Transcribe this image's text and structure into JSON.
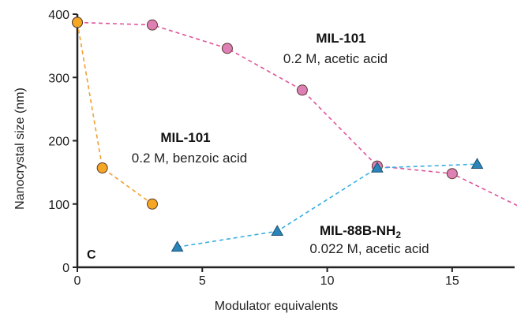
{
  "chart_data": {
    "type": "scatter",
    "panel_label": "C",
    "xlabel": "Modulator equivalents",
    "ylabel": "Nanocrystal size (nm)",
    "xlim": [
      0,
      17.5
    ],
    "ylim": [
      0,
      400
    ],
    "xticks": [
      "0",
      "5",
      "10",
      "15"
    ],
    "yticks": [
      "0",
      "100",
      "200",
      "300",
      "400"
    ],
    "grid": false,
    "lines": "dashed",
    "series": [
      {
        "line1": "MIL-101",
        "line2": "0.2 M, acetic acid",
        "marker": "circle",
        "color": "#e0559a",
        "fill": "#de7fb6",
        "x": [
          0,
          3,
          6,
          9,
          12,
          15,
          18
        ],
        "y": [
          387,
          383,
          346,
          280,
          160,
          148,
          90
        ]
      },
      {
        "line1": "MIL-101",
        "line2": "0.2 M, benzoic acid",
        "marker": "circle",
        "color": "#f0a030",
        "fill": "#f5a623",
        "x": [
          0,
          1,
          3
        ],
        "y": [
          387,
          157,
          100
        ]
      },
      {
        "line1": "MIL-88B-NH",
        "line1_sub": "2",
        "line2": "0.022 M, acetic acid",
        "marker": "triangle",
        "color": "#3aaee0",
        "fill": "#2a86b8",
        "x": [
          4,
          8,
          12,
          16
        ],
        "y": [
          32,
          57,
          157,
          163
        ]
      }
    ]
  }
}
